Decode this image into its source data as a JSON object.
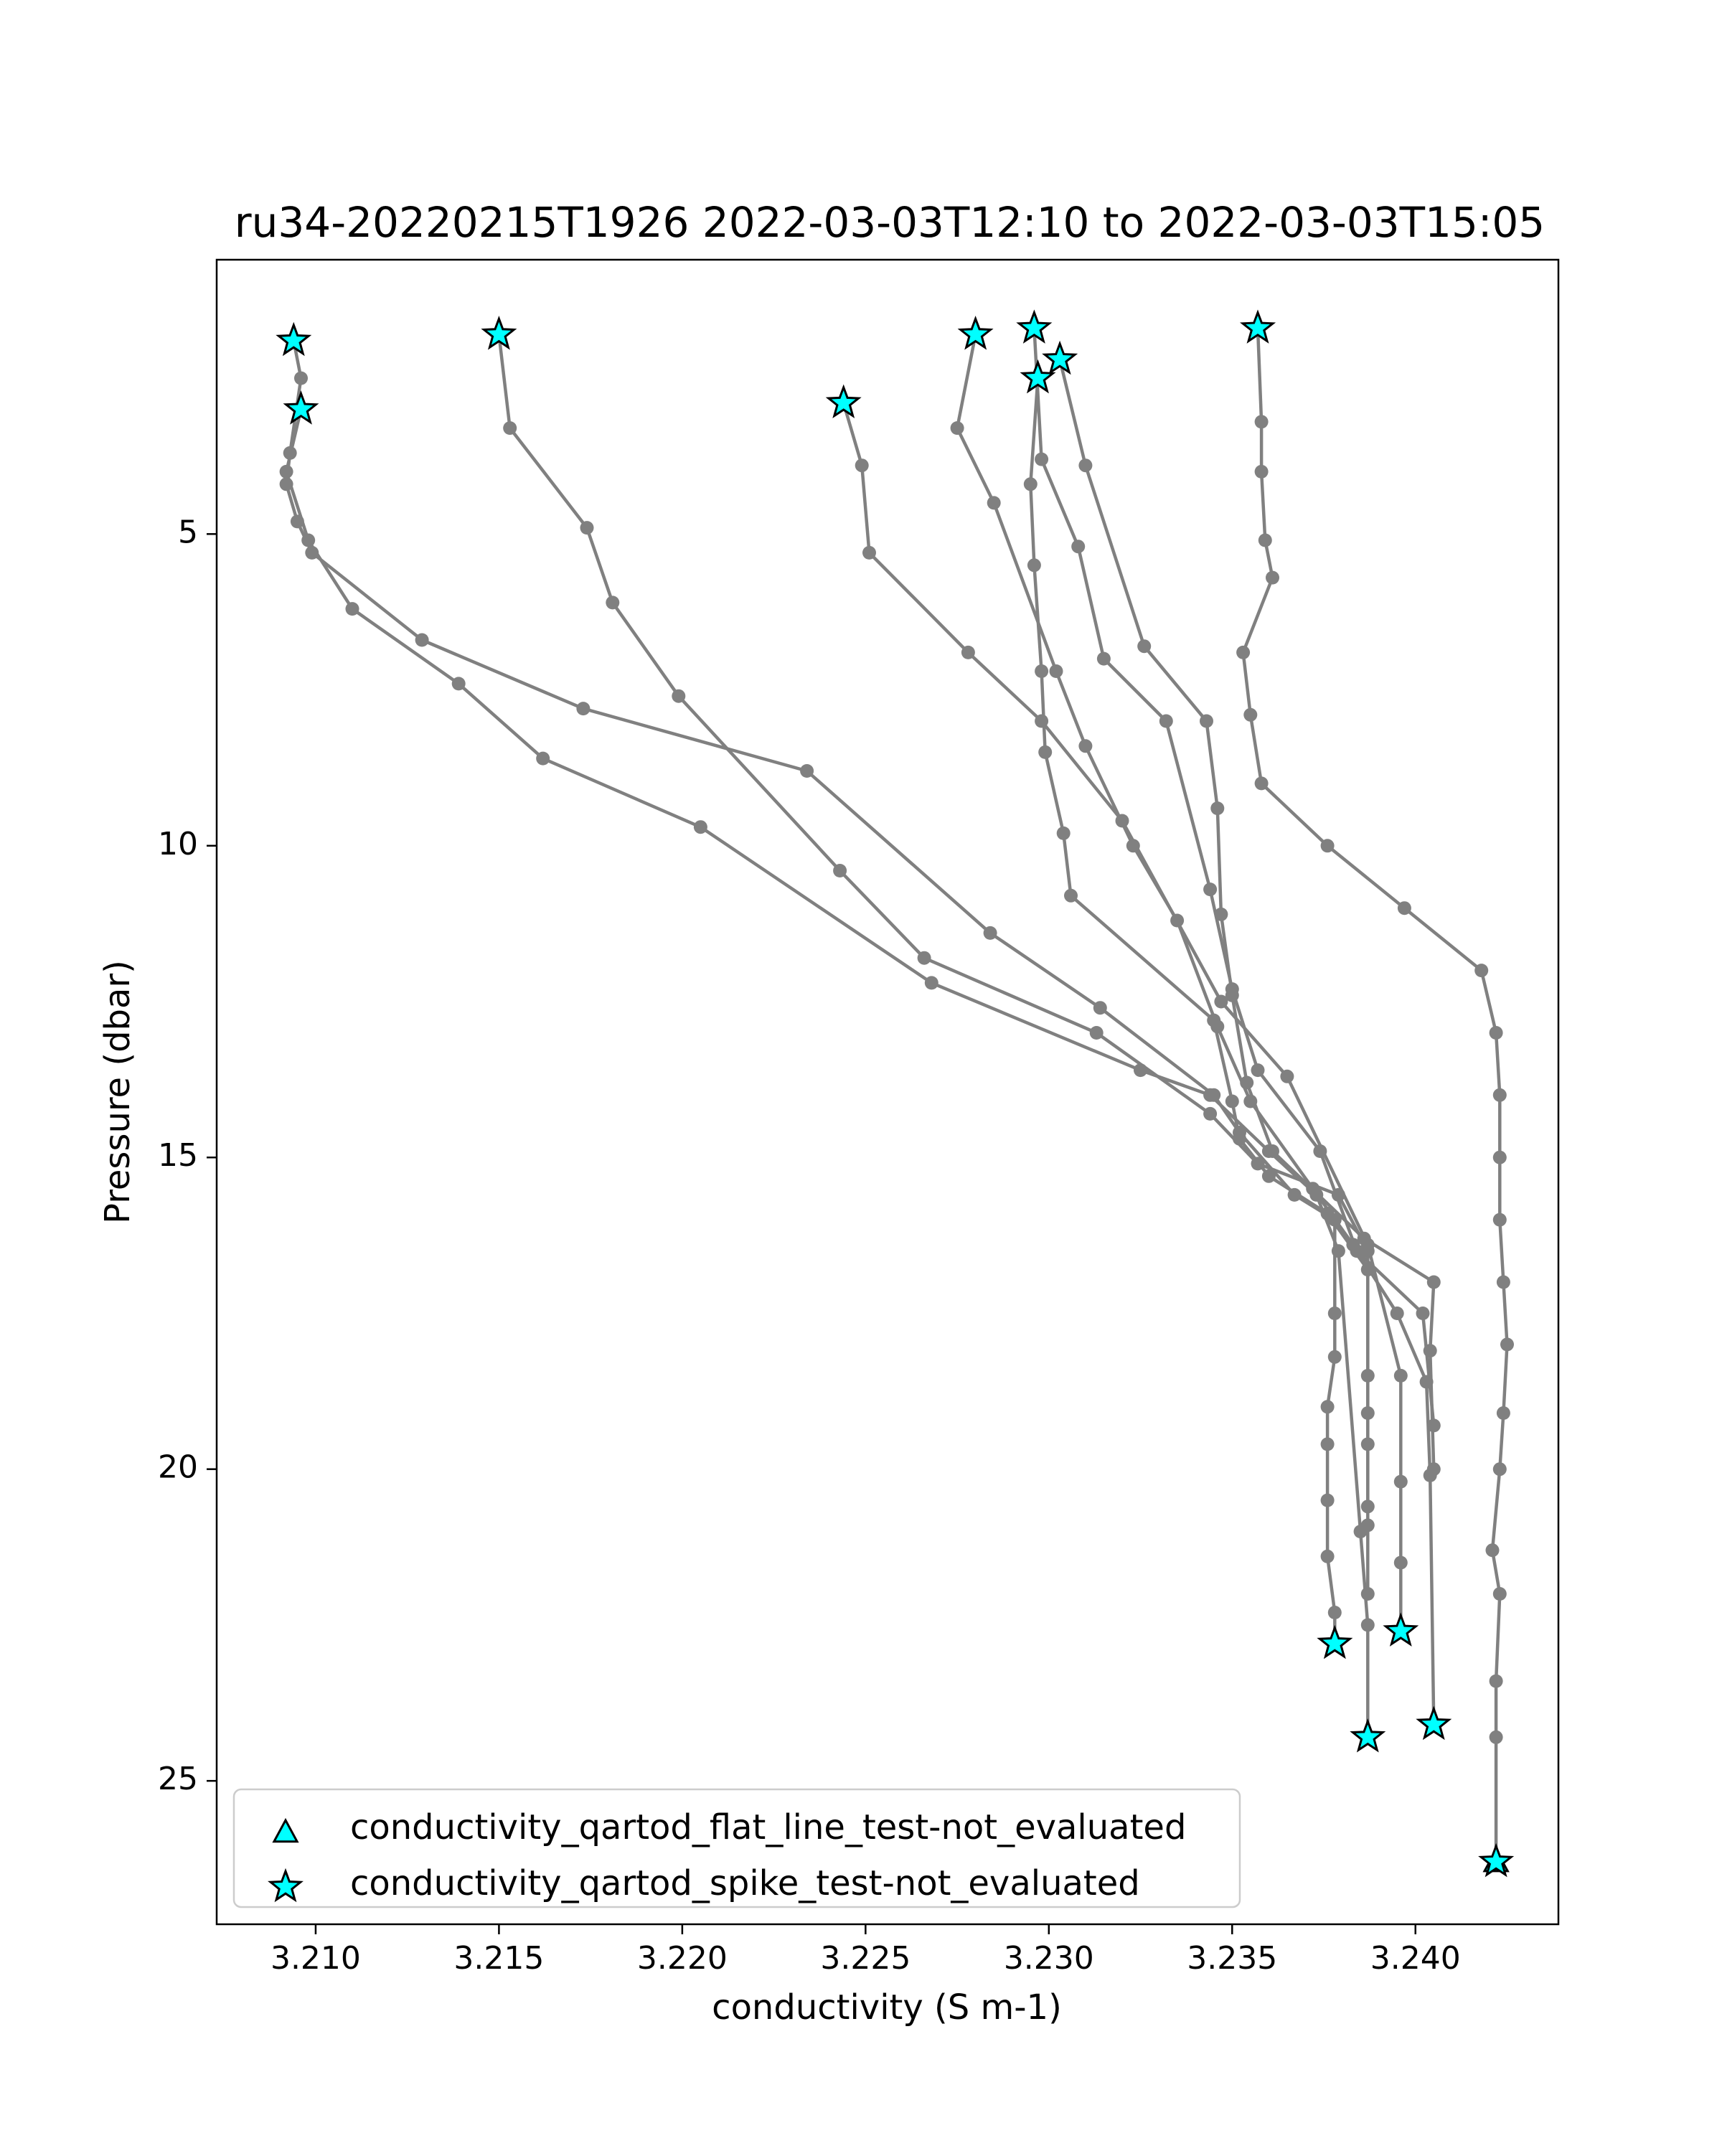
{
  "chart_data": {
    "type": "line",
    "title": "ru34-20220215T1926 2022-03-03T12:10 to 2022-03-03T15:05",
    "xlabel": "conductivity (S m-1)",
    "ylabel": "Pressure (dbar)",
    "xlim": [
      3.2073,
      3.2439
    ],
    "ylim": [
      27.3,
      0.6
    ],
    "y_inverted": true,
    "xticks": [
      3.21,
      3.215,
      3.22,
      3.225,
      3.23,
      3.235,
      3.24
    ],
    "xtick_labels": [
      "3.210",
      "3.215",
      "3.220",
      "3.225",
      "3.230",
      "3.235",
      "3.240"
    ],
    "yticks": [
      5,
      10,
      15,
      20,
      25
    ],
    "ytick_labels": [
      "5",
      "10",
      "15",
      "20",
      "25"
    ],
    "grid": false,
    "legend_position": "bottom-left",
    "colors": {
      "line": "#808080",
      "marker_fill": "#00ffff",
      "marker_edge": "#000000"
    },
    "series": [
      {
        "x": [
          3.2094,
          3.2096,
          3.2093,
          3.2092,
          3.2095,
          3.2099,
          3.2129,
          3.2173,
          3.2234,
          3.2284,
          3.2314,
          3.2345,
          3.2352,
          3.2367,
          3.2378,
          3.2378,
          3.2378,
          3.2376,
          3.2376,
          3.2376,
          3.2376,
          3.2378,
          3.2378
        ],
        "y": [
          1.9,
          2.5,
          3.7,
          4.2,
          4.8,
          5.3,
          6.7,
          7.8,
          8.8,
          11.4,
          12.6,
          14.0,
          14.6,
          15.6,
          16.0,
          17.5,
          18.2,
          19.0,
          19.6,
          20.5,
          21.4,
          22.3,
          22.8
        ]
      },
      {
        "x": [
          3.2096,
          3.2092,
          3.2098,
          3.211,
          3.2139,
          3.2162,
          3.2205,
          3.2268,
          3.2325,
          3.2344,
          3.236,
          3.2373,
          3.2379,
          3.2385,
          3.2387,
          3.2387
        ],
        "y": [
          3.0,
          4.0,
          5.1,
          6.2,
          7.4,
          8.6,
          9.7,
          12.2,
          13.6,
          14.0,
          14.9,
          15.6,
          16.5,
          21.0,
          22.5,
          24.3
        ]
      },
      {
        "x": [
          3.215,
          3.2153,
          3.2174,
          3.2181,
          3.2199,
          3.2243,
          3.2266,
          3.2313,
          3.2344,
          3.2357,
          3.2379,
          3.2387,
          3.2387,
          3.2387,
          3.2387,
          3.2387
        ],
        "y": [
          1.8,
          3.3,
          4.9,
          6.1,
          7.6,
          10.4,
          11.8,
          13.0,
          14.3,
          15.1,
          15.6,
          16.5,
          18.5,
          19.6,
          20.9,
          22.0
        ]
      },
      {
        "x": [
          3.2244,
          3.2249,
          3.2251,
          3.2278,
          3.2298,
          3.232,
          3.2347,
          3.2365,
          3.2387,
          3.2396,
          3.2396,
          3.2396,
          3.2396
        ],
        "y": [
          2.9,
          3.9,
          5.3,
          6.9,
          8.0,
          9.6,
          12.5,
          13.7,
          16.4,
          18.5,
          20.2,
          21.5,
          22.6
        ]
      },
      {
        "x": [
          3.228,
          3.2275,
          3.2285,
          3.2302,
          3.231,
          3.2323,
          3.2335,
          3.2346,
          3.2355,
          3.2372,
          3.2383,
          3.2395,
          3.2403,
          3.2404,
          3.2405
        ],
        "y": [
          1.8,
          3.3,
          4.5,
          7.2,
          8.4,
          10.0,
          11.2,
          12.9,
          14.1,
          15.5,
          16.4,
          17.5,
          18.6,
          20.1,
          24.1
        ]
      },
      {
        "x": [
          3.2297,
          3.2295,
          3.2296,
          3.2298,
          3.2299,
          3.2304,
          3.2306,
          3.2345,
          3.235,
          3.2352,
          3.236,
          3.2376,
          3.2387,
          3.2387,
          3.2387
        ],
        "y": [
          2.5,
          4.2,
          5.5,
          7.2,
          8.5,
          9.8,
          10.8,
          12.8,
          14.1,
          14.7,
          15.3,
          15.9,
          16.8,
          19.1,
          20.6
        ]
      },
      {
        "x": [
          3.2303,
          3.231,
          3.2326,
          3.2343,
          3.2346,
          3.2347,
          3.235,
          3.2354,
          3.2361,
          3.2386,
          3.2405,
          3.2404,
          3.2405
        ],
        "y": [
          2.2,
          3.9,
          6.8,
          8.0,
          9.4,
          11.1,
          12.4,
          13.8,
          14.9,
          16.3,
          17.0,
          18.1,
          20.0
        ]
      },
      {
        "x": [
          3.2296,
          3.2298,
          3.2308,
          3.2315,
          3.2332,
          3.2344,
          3.235,
          3.2357,
          3.2374,
          3.2384,
          3.2402,
          3.2405
        ],
        "y": [
          1.7,
          3.8,
          5.2,
          7.0,
          8.0,
          10.7,
          12.3,
          13.6,
          14.9,
          16.5,
          17.5,
          19.3
        ]
      },
      {
        "x": [
          3.2357,
          3.2358,
          3.2358,
          3.2359,
          3.2361,
          3.2353,
          3.2355,
          3.2358,
          3.2376,
          3.2397,
          3.2418,
          3.2422,
          3.2423,
          3.2423,
          3.2423,
          3.2424,
          3.2425,
          3.2424,
          3.2423,
          3.2421,
          3.2423,
          3.2422,
          3.2422,
          3.2422
        ],
        "y": [
          1.7,
          3.2,
          4.0,
          5.1,
          5.7,
          6.9,
          7.9,
          9.0,
          10.0,
          11.0,
          12.0,
          13.0,
          14.0,
          15.0,
          16.0,
          17.0,
          18.0,
          19.1,
          20.0,
          21.3,
          22.0,
          23.4,
          24.3,
          26.3
        ]
      }
    ],
    "spike_test_points": [
      {
        "x": 3.2094,
        "y": 1.9
      },
      {
        "x": 3.2096,
        "y": 3.0
      },
      {
        "x": 3.215,
        "y": 1.8
      },
      {
        "x": 3.2244,
        "y": 2.9
      },
      {
        "x": 3.228,
        "y": 1.8
      },
      {
        "x": 3.2296,
        "y": 1.7
      },
      {
        "x": 3.2303,
        "y": 2.2
      },
      {
        "x": 3.2297,
        "y": 2.5
      },
      {
        "x": 3.2357,
        "y": 1.7
      },
      {
        "x": 3.2378,
        "y": 22.8
      },
      {
        "x": 3.2396,
        "y": 22.6
      },
      {
        "x": 3.2387,
        "y": 24.3
      },
      {
        "x": 3.2405,
        "y": 24.1
      },
      {
        "x": 3.2422,
        "y": 26.3
      }
    ],
    "flat_line_test_points": [
      {
        "x": 3.2422,
        "y": 26.3
      }
    ],
    "legend": [
      {
        "marker": "triangle",
        "label": "conductivity_qartod_flat_line_test-not_evaluated"
      },
      {
        "marker": "star",
        "label": "conductivity_qartod_spike_test-not_evaluated"
      }
    ]
  }
}
